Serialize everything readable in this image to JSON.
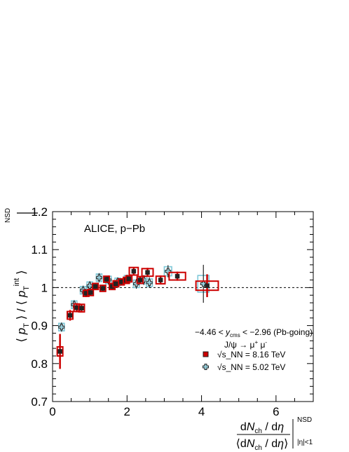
{
  "chart_data": {
    "type": "scatter",
    "title": "",
    "xlabel": "dN_ch / dη over ⟨dN_ch / dη⟩, NSD, |η|<1",
    "ylabel": "⟨p_T⟩ / ⟨p_T^int⟩, NSD",
    "xlim": [
      0,
      7
    ],
    "ylim": [
      0.7,
      1.2
    ],
    "x_ticks": [
      "0",
      "2",
      "4",
      "6"
    ],
    "y_ticks": [
      "0.7",
      "0.8",
      "0.9",
      "1",
      "1.1",
      "1.2"
    ],
    "reference_line": 1.0,
    "annotations": {
      "experiment": "ALICE, p−Pb",
      "rapidity": "−4.46 < y_cms < −2.96 (Pb-going)",
      "decay": "J/ψ → μ⁺ μ⁻"
    },
    "series": [
      {
        "name": "√s_NN = 8.16 TeV",
        "color": "#cc0000",
        "marker": "filled-square",
        "points": [
          {
            "x": 0.2,
            "y": 0.832,
            "err": 0.046,
            "sx": 0.05,
            "sy": 0.012
          },
          {
            "x": 0.47,
            "y": 0.927,
            "err": 0.014,
            "sx": 0.05,
            "sy": 0.01
          },
          {
            "x": 0.65,
            "y": 0.947,
            "err": 0.012,
            "sx": 0.06,
            "sy": 0.01
          },
          {
            "x": 0.78,
            "y": 0.946,
            "err": 0.011,
            "sx": 0.06,
            "sy": 0.01
          },
          {
            "x": 0.9,
            "y": 0.985,
            "err": 0.01,
            "sx": 0.06,
            "sy": 0.008
          },
          {
            "x": 1.02,
            "y": 0.987,
            "err": 0.009,
            "sx": 0.06,
            "sy": 0.008
          },
          {
            "x": 1.15,
            "y": 1.003,
            "err": 0.009,
            "sx": 0.06,
            "sy": 0.008
          },
          {
            "x": 1.35,
            "y": 0.998,
            "err": 0.008,
            "sx": 0.06,
            "sy": 0.008
          },
          {
            "x": 1.45,
            "y": 1.022,
            "err": 0.008,
            "sx": 0.07,
            "sy": 0.008
          },
          {
            "x": 1.6,
            "y": 1.003,
            "err": 0.008,
            "sx": 0.07,
            "sy": 0.008
          },
          {
            "x": 1.7,
            "y": 1.01,
            "err": 0.008,
            "sx": 0.07,
            "sy": 0.008
          },
          {
            "x": 1.85,
            "y": 1.015,
            "err": 0.008,
            "sx": 0.07,
            "sy": 0.008
          },
          {
            "x": 1.98,
            "y": 1.019,
            "err": 0.009,
            "sx": 0.08,
            "sy": 0.008
          },
          {
            "x": 2.05,
            "y": 1.023,
            "err": 0.009,
            "sx": 0.08,
            "sy": 0.008
          },
          {
            "x": 2.18,
            "y": 1.043,
            "err": 0.01,
            "sx": 0.12,
            "sy": 0.01
          },
          {
            "x": 2.35,
            "y": 1.02,
            "err": 0.01,
            "sx": 0.08,
            "sy": 0.009
          },
          {
            "x": 2.55,
            "y": 1.04,
            "err": 0.012,
            "sx": 0.15,
            "sy": 0.01
          },
          {
            "x": 2.9,
            "y": 1.02,
            "err": 0.012,
            "sx": 0.12,
            "sy": 0.01
          },
          {
            "x": 3.35,
            "y": 1.03,
            "err": 0.012,
            "sx": 0.22,
            "sy": 0.01
          },
          {
            "x": 4.15,
            "y": 1.005,
            "err": 0.03,
            "sx": 0.3,
            "sy": 0.012
          }
        ]
      },
      {
        "name": "√s_NN = 5.02 TeV",
        "color": "#7fc8d8",
        "marker": "open-cross",
        "points": [
          {
            "x": 0.24,
            "y": 0.896,
            "err": 0.012,
            "sx": 0.05,
            "sy": 0.01
          },
          {
            "x": 0.58,
            "y": 0.955,
            "err": 0.012,
            "sx": 0.06,
            "sy": 0.01
          },
          {
            "x": 0.82,
            "y": 0.993,
            "err": 0.012,
            "sx": 0.06,
            "sy": 0.01
          },
          {
            "x": 1.0,
            "y": 1.005,
            "err": 0.012,
            "sx": 0.06,
            "sy": 0.01
          },
          {
            "x": 1.25,
            "y": 1.026,
            "err": 0.012,
            "sx": 0.07,
            "sy": 0.01
          },
          {
            "x": 1.5,
            "y": 1.02,
            "err": 0.012,
            "sx": 0.07,
            "sy": 0.01
          },
          {
            "x": 1.75,
            "y": 1.015,
            "err": 0.012,
            "sx": 0.07,
            "sy": 0.01
          },
          {
            "x": 2.0,
            "y": 1.022,
            "err": 0.012,
            "sx": 0.07,
            "sy": 0.01
          },
          {
            "x": 2.25,
            "y": 1.01,
            "err": 0.013,
            "sx": 0.08,
            "sy": 0.01
          },
          {
            "x": 2.45,
            "y": 1.02,
            "err": 0.013,
            "sx": 0.08,
            "sy": 0.01
          },
          {
            "x": 2.6,
            "y": 1.013,
            "err": 0.014,
            "sx": 0.08,
            "sy": 0.01
          },
          {
            "x": 3.1,
            "y": 1.043,
            "err": 0.016,
            "sx": 0.1,
            "sy": 0.012
          },
          {
            "x": 4.05,
            "y": 1.01,
            "err": 0.05,
            "sx": 0.15,
            "sy": 0.022
          }
        ]
      }
    ]
  }
}
